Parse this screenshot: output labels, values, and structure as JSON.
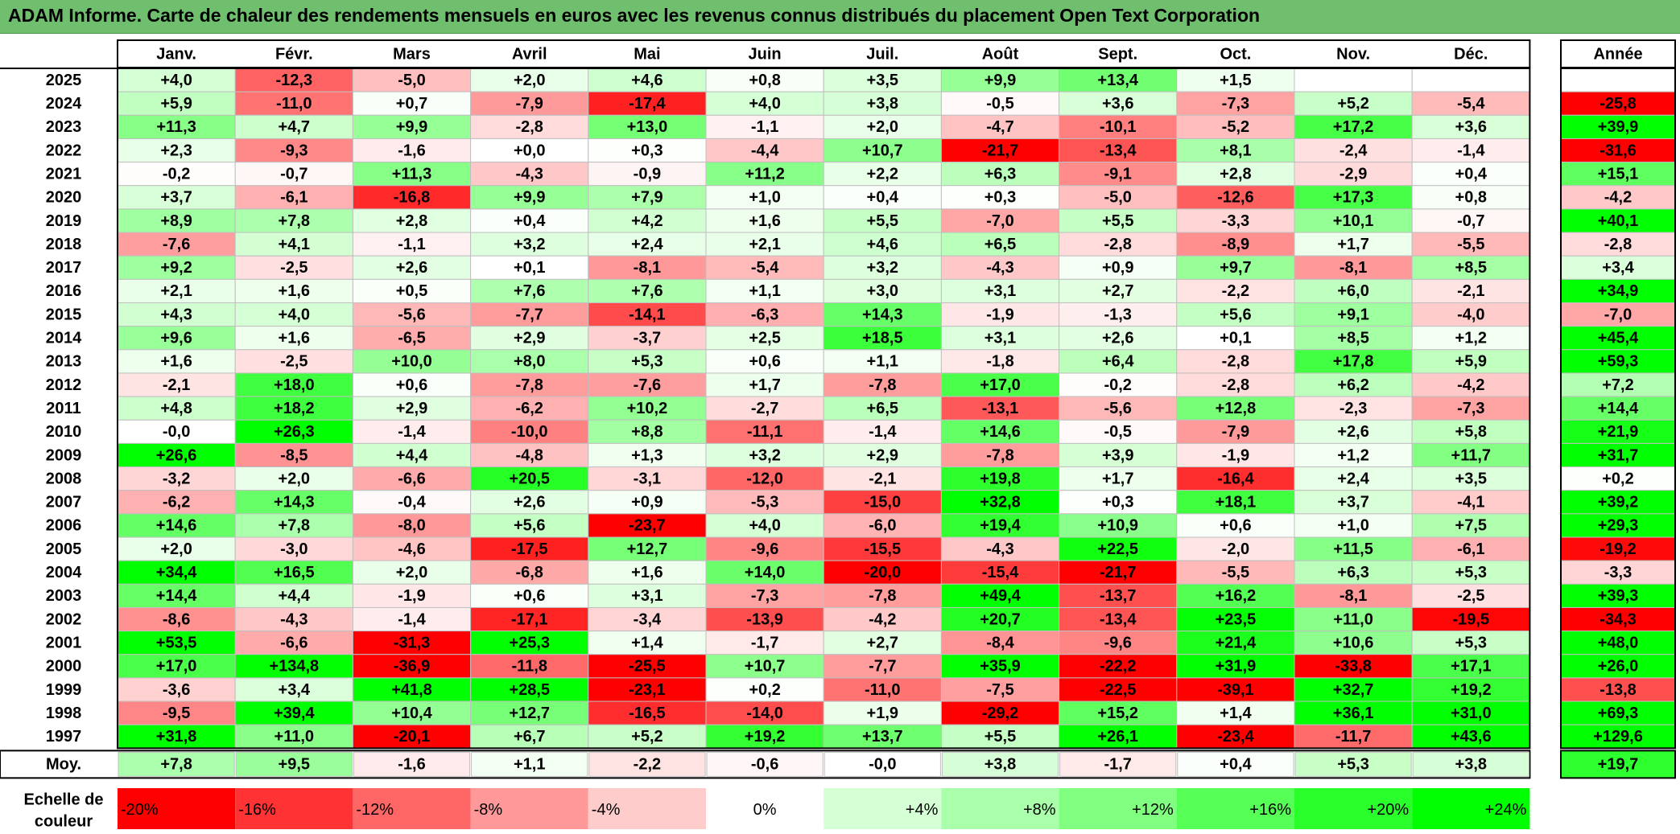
{
  "title": "ADAM Informe. Carte de chaleur des rendements mensuels en euros avec les revenus connus distribués du placement Open Text Corporation",
  "chart_data": {
    "type": "heatmap",
    "months": [
      "Janv.",
      "Févr.",
      "Mars",
      "Avril",
      "Mai",
      "Juin",
      "Juil.",
      "Août",
      "Sept.",
      "Oct.",
      "Nov.",
      "Déc."
    ],
    "year_column_label": "Année",
    "rows": [
      {
        "year": "2025",
        "values": [
          "+4,0",
          "-12,3",
          "-5,0",
          "+2,0",
          "+4,6",
          "+0,8",
          "+3,5",
          "+9,9",
          "+13,4",
          "+1,5",
          "",
          ""
        ],
        "annual": ""
      },
      {
        "year": "2024",
        "values": [
          "+5,9",
          "-11,0",
          "+0,7",
          "-7,9",
          "-17,4",
          "+4,0",
          "+3,8",
          "-0,5",
          "+3,6",
          "-7,3",
          "+5,2",
          "-5,4"
        ],
        "annual": "-25,8"
      },
      {
        "year": "2023",
        "values": [
          "+11,3",
          "+4,7",
          "+9,9",
          "-2,8",
          "+13,0",
          "-1,1",
          "+2,0",
          "-4,7",
          "-10,1",
          "-5,2",
          "+17,2",
          "+3,6"
        ],
        "annual": "+39,9"
      },
      {
        "year": "2022",
        "values": [
          "+2,3",
          "-9,3",
          "-1,6",
          "+0,0",
          "+0,3",
          "-4,4",
          "+10,7",
          "-21,7",
          "-13,4",
          "+8,1",
          "-2,4",
          "-1,4"
        ],
        "annual": "-31,6"
      },
      {
        "year": "2021",
        "values": [
          "-0,2",
          "-0,7",
          "+11,3",
          "-4,3",
          "-0,9",
          "+11,2",
          "+2,2",
          "+6,3",
          "-9,1",
          "+2,8",
          "-2,9",
          "+0,4"
        ],
        "annual": "+15,1"
      },
      {
        "year": "2020",
        "values": [
          "+3,7",
          "-6,1",
          "-16,8",
          "+9,9",
          "+7,9",
          "+1,0",
          "+0,4",
          "+0,3",
          "-5,0",
          "-12,6",
          "+17,3",
          "+0,8"
        ],
        "annual": "-4,2"
      },
      {
        "year": "2019",
        "values": [
          "+8,9",
          "+7,8",
          "+2,8",
          "+0,4",
          "+4,2",
          "+1,6",
          "+5,5",
          "-7,0",
          "+5,5",
          "-3,3",
          "+10,1",
          "-0,7"
        ],
        "annual": "+40,1"
      },
      {
        "year": "2018",
        "values": [
          "-7,6",
          "+4,1",
          "-1,1",
          "+3,2",
          "+2,4",
          "+2,1",
          "+4,6",
          "+6,5",
          "-2,8",
          "-8,9",
          "+1,7",
          "-5,5"
        ],
        "annual": "-2,8"
      },
      {
        "year": "2017",
        "values": [
          "+9,2",
          "-2,5",
          "+2,6",
          "+0,1",
          "-8,1",
          "-5,4",
          "+3,2",
          "-4,3",
          "+0,9",
          "+9,7",
          "-8,1",
          "+8,5"
        ],
        "annual": "+3,4"
      },
      {
        "year": "2016",
        "values": [
          "+2,1",
          "+1,6",
          "+0,5",
          "+7,6",
          "+7,6",
          "+1,1",
          "+3,0",
          "+3,1",
          "+2,7",
          "-2,2",
          "+6,0",
          "-2,1"
        ],
        "annual": "+34,9"
      },
      {
        "year": "2015",
        "values": [
          "+4,3",
          "+4,0",
          "-5,6",
          "-7,7",
          "-14,1",
          "-6,3",
          "+14,3",
          "-1,9",
          "-1,3",
          "+5,6",
          "+9,1",
          "-4,0"
        ],
        "annual": "-7,0"
      },
      {
        "year": "2014",
        "values": [
          "+9,6",
          "+1,6",
          "-6,5",
          "+2,9",
          "-3,7",
          "+2,5",
          "+18,5",
          "+3,1",
          "+2,6",
          "+0,1",
          "+8,5",
          "+1,2"
        ],
        "annual": "+45,4"
      },
      {
        "year": "2013",
        "values": [
          "+1,6",
          "-2,5",
          "+10,0",
          "+8,0",
          "+5,3",
          "+0,6",
          "+1,1",
          "-1,8",
          "+6,4",
          "-2,8",
          "+17,8",
          "+5,9"
        ],
        "annual": "+59,3"
      },
      {
        "year": "2012",
        "values": [
          "-2,1",
          "+18,0",
          "+0,6",
          "-7,8",
          "-7,6",
          "+1,7",
          "-7,8",
          "+17,0",
          "-0,2",
          "-2,8",
          "+6,2",
          "-4,2"
        ],
        "annual": "+7,2"
      },
      {
        "year": "2011",
        "values": [
          "+4,8",
          "+18,2",
          "+2,9",
          "-6,2",
          "+10,2",
          "-2,7",
          "+6,5",
          "-13,1",
          "-5,6",
          "+12,8",
          "-2,3",
          "-7,3"
        ],
        "annual": "+14,4"
      },
      {
        "year": "2010",
        "values": [
          "-0,0",
          "+26,3",
          "-1,4",
          "-10,0",
          "+8,8",
          "-11,1",
          "-1,4",
          "+14,6",
          "-0,5",
          "-7,9",
          "+2,6",
          "+5,8"
        ],
        "annual": "+21,9"
      },
      {
        "year": "2009",
        "values": [
          "+26,6",
          "-8,5",
          "+4,4",
          "-4,8",
          "+1,3",
          "+3,2",
          "+2,9",
          "-7,8",
          "+3,9",
          "-1,9",
          "+1,2",
          "+11,7"
        ],
        "annual": "+31,7"
      },
      {
        "year": "2008",
        "values": [
          "-3,2",
          "+2,0",
          "-6,6",
          "+20,5",
          "-3,1",
          "-12,0",
          "-2,1",
          "+19,8",
          "+1,7",
          "-16,4",
          "+2,4",
          "+3,5"
        ],
        "annual": "+0,2"
      },
      {
        "year": "2007",
        "values": [
          "-6,2",
          "+14,3",
          "-0,4",
          "+2,6",
          "+0,9",
          "-5,3",
          "-15,0",
          "+32,8",
          "+0,3",
          "+18,1",
          "+3,7",
          "-4,1"
        ],
        "annual": "+39,2"
      },
      {
        "year": "2006",
        "values": [
          "+14,6",
          "+7,8",
          "-8,0",
          "+5,6",
          "-23,7",
          "+4,0",
          "-6,0",
          "+19,4",
          "+10,9",
          "+0,6",
          "+1,0",
          "+7,5"
        ],
        "annual": "+29,3"
      },
      {
        "year": "2005",
        "values": [
          "+2,0",
          "-3,0",
          "-4,6",
          "-17,5",
          "+12,7",
          "-9,6",
          "-15,5",
          "-4,3",
          "+22,5",
          "-2,0",
          "+11,5",
          "-6,1"
        ],
        "annual": "-19,2"
      },
      {
        "year": "2004",
        "values": [
          "+34,4",
          "+16,5",
          "+2,0",
          "-6,8",
          "+1,6",
          "+14,0",
          "-20,0",
          "-15,4",
          "-21,7",
          "-5,5",
          "+6,3",
          "+5,3"
        ],
        "annual": "-3,3"
      },
      {
        "year": "2003",
        "values": [
          "+14,4",
          "+4,4",
          "-1,9",
          "+0,6",
          "+3,1",
          "-7,3",
          "-7,8",
          "+49,4",
          "-13,7",
          "+16,2",
          "-8,1",
          "-2,5"
        ],
        "annual": "+39,3"
      },
      {
        "year": "2002",
        "values": [
          "-8,6",
          "-4,3",
          "-1,4",
          "-17,1",
          "-3,4",
          "-13,9",
          "-4,2",
          "+20,7",
          "-13,4",
          "+23,5",
          "+11,0",
          "-19,5"
        ],
        "annual": "-34,3"
      },
      {
        "year": "2001",
        "values": [
          "+53,5",
          "-6,6",
          "-31,3",
          "+25,3",
          "+1,4",
          "-1,7",
          "+2,7",
          "-8,4",
          "-9,6",
          "+21,4",
          "+10,6",
          "+5,3"
        ],
        "annual": "+48,0"
      },
      {
        "year": "2000",
        "values": [
          "+17,0",
          "+134,8",
          "-36,9",
          "-11,8",
          "-25,5",
          "+10,7",
          "-7,7",
          "+35,9",
          "-22,2",
          "+31,9",
          "-33,8",
          "+17,1"
        ],
        "annual": "+26,0"
      },
      {
        "year": "1999",
        "values": [
          "-3,6",
          "+3,4",
          "+41,8",
          "+28,5",
          "-23,1",
          "+0,2",
          "-11,0",
          "-7,5",
          "-22,5",
          "-39,1",
          "+32,7",
          "+19,2"
        ],
        "annual": "-13,8"
      },
      {
        "year": "1998",
        "values": [
          "-9,5",
          "+39,4",
          "+10,4",
          "+12,7",
          "-16,5",
          "-14,0",
          "+1,9",
          "-29,2",
          "+15,2",
          "+1,4",
          "+36,1",
          "+31,0"
        ],
        "annual": "+69,3"
      },
      {
        "year": "1997",
        "values": [
          "+31,8",
          "+11,0",
          "-20,1",
          "+6,7",
          "+5,2",
          "+19,2",
          "+13,7",
          "+5,5",
          "+26,1",
          "-23,4",
          "-11,7",
          "+43,6"
        ],
        "annual": "+129,6"
      }
    ],
    "average": {
      "label": "Moy.",
      "values": [
        "+7,8",
        "+9,5",
        "-1,6",
        "+1,1",
        "-2,2",
        "-0,6",
        "-0,0",
        "+3,8",
        "-1,7",
        "+0,4",
        "+5,3",
        "+3,8"
      ],
      "annual": "+19,7"
    },
    "scale": {
      "label_line1": "Echelle de",
      "label_line2": "couleur",
      "steps": [
        {
          "label": "-20%",
          "value": -20
        },
        {
          "label": "-16%",
          "value": -16
        },
        {
          "label": "-12%",
          "value": -12
        },
        {
          "label": "-8%",
          "value": -8
        },
        {
          "label": "-4%",
          "value": -4
        },
        {
          "label": "0%",
          "value": 0
        },
        {
          "label": "+4%",
          "value": 4
        },
        {
          "label": "+8%",
          "value": 8
        },
        {
          "label": "+12%",
          "value": 12
        },
        {
          "label": "+16%",
          "value": 16
        },
        {
          "label": "+20%",
          "value": 20
        },
        {
          "label": "+24%",
          "value": 24
        }
      ]
    },
    "colors": {
      "negative_max": "#ff0000",
      "neutral": "#ffffff",
      "positive_max": "#00ff00",
      "title_bar": "#6fbf6f"
    }
  }
}
